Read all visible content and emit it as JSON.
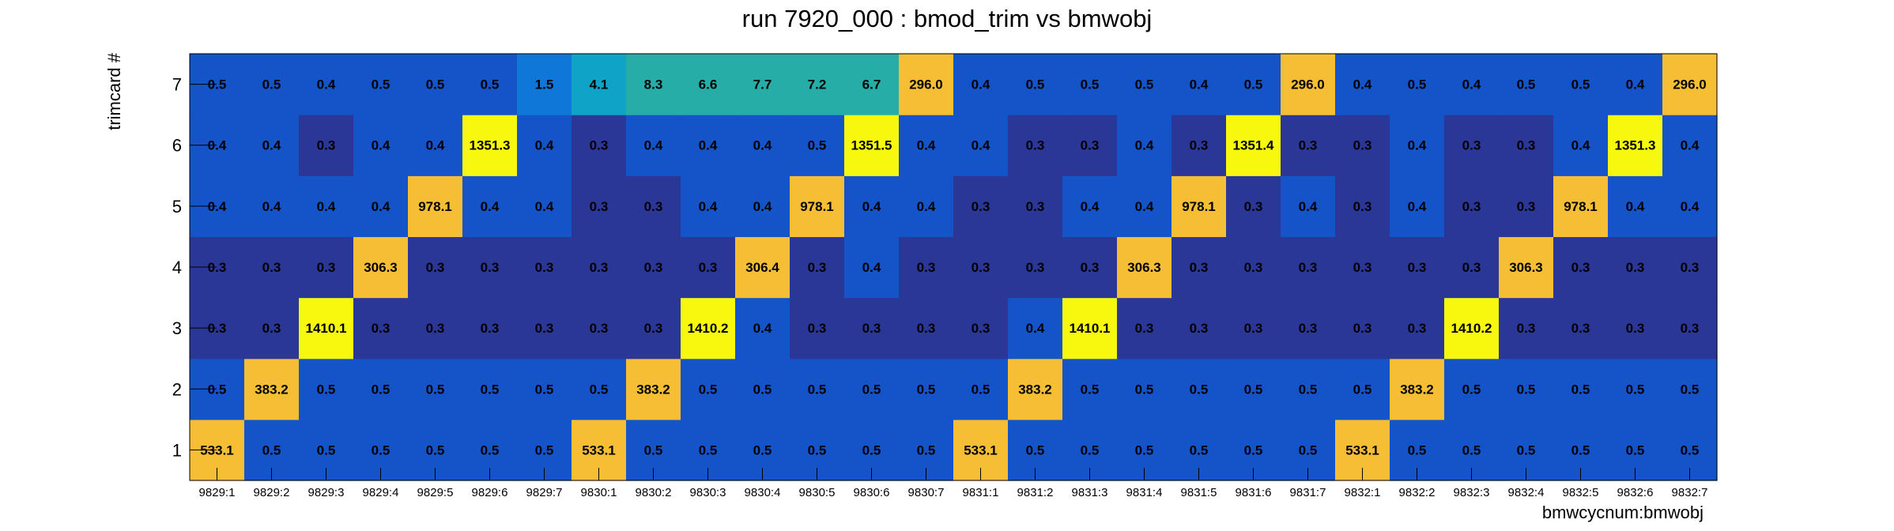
{
  "chart_data": {
    "type": "heatmap",
    "title": "run 7920_000 : bmod_trim vs bmwobj",
    "xlabel": "bmwcycnum:bmwobj",
    "ylabel": "trimcard #",
    "x_categories": [
      "9829:1",
      "9829:2",
      "9829:3",
      "9829:4",
      "9829:5",
      "9829:6",
      "9829:7",
      "9830:1",
      "9830:2",
      "9830:3",
      "9830:4",
      "9830:5",
      "9830:6",
      "9830:7",
      "9831:1",
      "9831:2",
      "9831:3",
      "9831:4",
      "9831:5",
      "9831:6",
      "9831:7",
      "9832:1",
      "9832:2",
      "9832:3",
      "9832:4",
      "9832:5",
      "9832:6",
      "9832:7"
    ],
    "y_categories": [
      "1",
      "2",
      "3",
      "4",
      "5",
      "6",
      "7"
    ],
    "values": [
      [
        "533.1",
        "0.5",
        "0.5",
        "0.5",
        "0.5",
        "0.5",
        "0.5",
        "533.1",
        "0.5",
        "0.5",
        "0.5",
        "0.5",
        "0.5",
        "0.5",
        "533.1",
        "0.5",
        "0.5",
        "0.5",
        "0.5",
        "0.5",
        "0.5",
        "533.1",
        "0.5",
        "0.5",
        "0.5",
        "0.5",
        "0.5",
        "0.5"
      ],
      [
        "0.5",
        "383.2",
        "0.5",
        "0.5",
        "0.5",
        "0.5",
        "0.5",
        "0.5",
        "383.2",
        "0.5",
        "0.5",
        "0.5",
        "0.5",
        "0.5",
        "0.5",
        "383.2",
        "0.5",
        "0.5",
        "0.5",
        "0.5",
        "0.5",
        "0.5",
        "383.2",
        "0.5",
        "0.5",
        "0.5",
        "0.5",
        "0.5"
      ],
      [
        "0.3",
        "0.3",
        "1410.1",
        "0.3",
        "0.3",
        "0.3",
        "0.3",
        "0.3",
        "0.3",
        "1410.2",
        "0.4",
        "0.3",
        "0.3",
        "0.3",
        "0.3",
        "0.4",
        "1410.1",
        "0.3",
        "0.3",
        "0.3",
        "0.3",
        "0.3",
        "0.3",
        "1410.2",
        "0.3",
        "0.3",
        "0.3",
        "0.3"
      ],
      [
        "0.3",
        "0.3",
        "0.3",
        "306.3",
        "0.3",
        "0.3",
        "0.3",
        "0.3",
        "0.3",
        "0.3",
        "306.4",
        "0.3",
        "0.4",
        "0.3",
        "0.3",
        "0.3",
        "0.3",
        "306.3",
        "0.3",
        "0.3",
        "0.3",
        "0.3",
        "0.3",
        "0.3",
        "306.3",
        "0.3",
        "0.3",
        "0.3"
      ],
      [
        "0.4",
        "0.4",
        "0.4",
        "0.4",
        "978.1",
        "0.4",
        "0.4",
        "0.3",
        "0.3",
        "0.4",
        "0.4",
        "978.1",
        "0.4",
        "0.4",
        "0.3",
        "0.3",
        "0.4",
        "0.4",
        "978.1",
        "0.3",
        "0.4",
        "0.3",
        "0.4",
        "0.3",
        "0.3",
        "978.1",
        "0.4",
        "0.4"
      ],
      [
        "0.4",
        "0.4",
        "0.3",
        "0.4",
        "0.4",
        "1351.3",
        "0.4",
        "0.3",
        "0.4",
        "0.4",
        "0.4",
        "0.5",
        "1351.5",
        "0.4",
        "0.4",
        "0.3",
        "0.3",
        "0.4",
        "0.3",
        "1351.4",
        "0.3",
        "0.3",
        "0.4",
        "0.3",
        "0.3",
        "0.4",
        "1351.3",
        "0.4"
      ],
      [
        "0.5",
        "0.5",
        "0.4",
        "0.5",
        "0.5",
        "0.5",
        "1.5",
        "4.1",
        "8.3",
        "6.6",
        "7.7",
        "7.2",
        "6.7",
        "296.0",
        "0.4",
        "0.5",
        "0.5",
        "0.5",
        "0.4",
        "0.5",
        "296.0",
        "0.4",
        "0.5",
        "0.4",
        "0.5",
        "0.5",
        "0.4",
        "296.0"
      ]
    ],
    "colors": {
      "low": "#2b3796",
      "mid": "#1553c9",
      "blue2": "#0f77d8",
      "cyan": "#10a3c8",
      "teal": "#27ada8",
      "orange": "#f5be35",
      "yellow": "#f8f80e"
    },
    "grid": false,
    "legend": "none"
  }
}
